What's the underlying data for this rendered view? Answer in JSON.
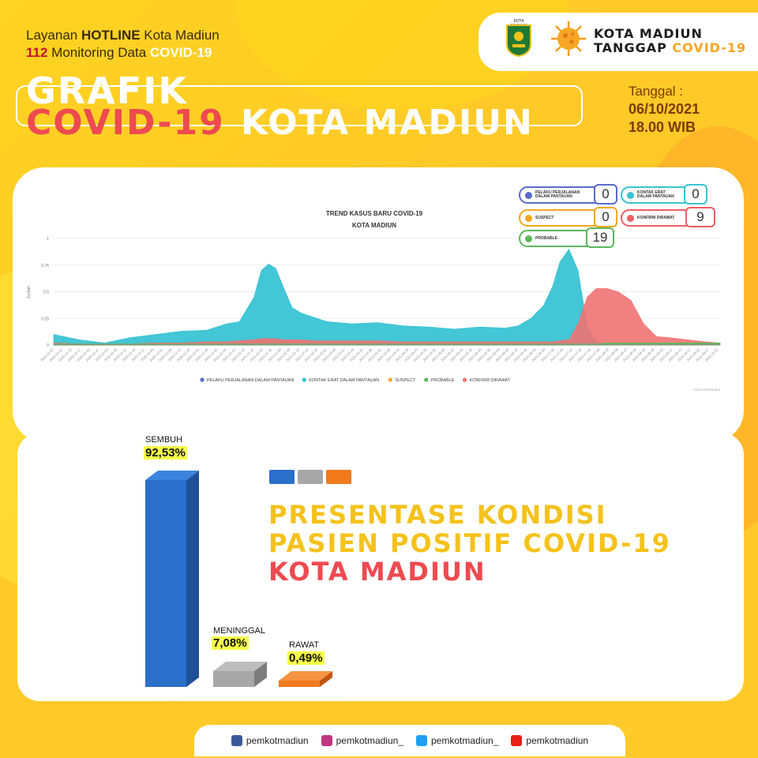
{
  "header": {
    "hotline_pre": "Layanan ",
    "hotline_bold": "HOTLINE",
    "hotline_post": " Kota Madiun",
    "monitoring_num": "112",
    "monitoring_text": " Monitoring Data ",
    "monitoring_tag": "COVID-19",
    "title_line1": "GRAFIK",
    "title_covid": "COVID-19",
    "title_kota": "KOTA MADIUN",
    "date_label": "Tanggal :",
    "date_value": "06/10/2021",
    "date_time": "18.00 WIB"
  },
  "logo": {
    "emblem_caption": "KOTA MADIUN",
    "brand_line1": "KOTA MADIUN",
    "brand_line2_pre": "TANGGAP ",
    "brand_line2_tag": "COVID-19"
  },
  "counters": [
    {
      "label": "PELAKU PERJALANAN\nDALAM PANTAUAN",
      "value": "0",
      "color": "#5a6bc9"
    },
    {
      "label": "KONTAK ERAT\nDALAM PANTAUAN",
      "value": "0",
      "color": "#39c3d4"
    },
    {
      "label": "SUSPECT",
      "value": "0",
      "color": "#f2a81d"
    },
    {
      "label": "KONFIRM DIRAWAT",
      "value": "9",
      "color": "#ec5f64"
    },
    {
      "label": "PROBABLE",
      "value": "19",
      "color": "#5db85c"
    }
  ],
  "chart_data": [
    {
      "type": "area",
      "title": "TREND KASUS BARU COVID-19",
      "subtitle": "KOTA MADIUN",
      "ylabel": "Jumlah",
      "ylim": [
        0,
        1
      ],
      "yticks": [
        "0",
        "0.25",
        "0.5",
        "0.75",
        "1"
      ],
      "grid": true,
      "legend_position": "bottom",
      "credit": "Chart Dashboard",
      "x_start": "2020-10-02",
      "x_end": "2021-10-03",
      "x_tick_labels": [
        "2020-10-02",
        "2020-10-07",
        "2020-10-12",
        "2020-10-17",
        "2020-10-22",
        "2020-10-27",
        "2020-11-01",
        "2020-11-06",
        "2020-11-11",
        "2020-11-16",
        "2020-11-21",
        "2020-11-26",
        "2020-12-01",
        "2020-12-06",
        "2020-12-11",
        "2020-12-16",
        "2020-12-21",
        "2020-12-26",
        "2020-12-31",
        "2021-01-05",
        "2021-01-10",
        "2021-01-15",
        "2021-01-20",
        "2021-01-25",
        "2021-01-30",
        "2021-02-04",
        "2021-02-09",
        "2021-02-14",
        "2021-02-19",
        "2021-02-24",
        "2021-03-01",
        "2021-03-06",
        "2021-03-11",
        "2021-03-16",
        "2021-03-21",
        "2021-03-26",
        "2021-03-31",
        "2021-04-05",
        "2021-04-10",
        "2021-04-15",
        "2021-04-20",
        "2021-04-25",
        "2021-04-30",
        "2021-05-05",
        "2021-05-10",
        "2021-05-15",
        "2021-05-20",
        "2021-05-25",
        "2021-05-30",
        "2021-06-04",
        "2021-06-09",
        "2021-06-14",
        "2021-06-19",
        "2021-06-24",
        "2021-06-29",
        "2021-07-04",
        "2021-07-09",
        "2021-07-14",
        "2021-07-19",
        "2021-07-24",
        "2021-07-29",
        "2021-08-03",
        "2021-08-08",
        "2021-08-13",
        "2021-08-18",
        "2021-08-23",
        "2021-08-28",
        "2021-09-02",
        "2021-09-07",
        "2021-09-12",
        "2021-09-17",
        "2021-09-22",
        "2021-09-27",
        "2021-10-02"
      ],
      "x": [
        "2020-10-02",
        "2020-10-16",
        "2020-10-30",
        "2020-11-13",
        "2020-11-27",
        "2020-12-11",
        "2020-12-25",
        "2021-01-05",
        "2021-01-12",
        "2021-01-20",
        "2021-01-24",
        "2021-01-28",
        "2021-02-01",
        "2021-02-05",
        "2021-02-10",
        "2021-02-15",
        "2021-02-22",
        "2021-03-01",
        "2021-03-15",
        "2021-03-29",
        "2021-04-12",
        "2021-04-26",
        "2021-05-10",
        "2021-05-24",
        "2021-06-07",
        "2021-06-14",
        "2021-06-21",
        "2021-06-28",
        "2021-07-03",
        "2021-07-07",
        "2021-07-12",
        "2021-07-17",
        "2021-07-22",
        "2021-07-27",
        "2021-08-02",
        "2021-08-08",
        "2021-08-15",
        "2021-08-22",
        "2021-08-29",
        "2021-09-05",
        "2021-09-15",
        "2021-09-25",
        "2021-10-03"
      ],
      "series": [
        {
          "name": "PELAKU PERJALANAN DALAM PANTAUAN",
          "color": "#5a6bc9",
          "values": [
            0,
            0,
            0,
            0,
            0,
            0,
            0,
            0,
            0,
            0,
            0,
            0,
            0,
            0,
            0,
            0,
            0,
            0,
            0,
            0,
            0,
            0,
            0,
            0,
            0,
            0,
            0,
            0,
            0,
            0,
            0,
            0,
            0,
            0,
            0,
            0,
            0,
            0,
            0,
            0,
            0,
            0,
            0
          ]
        },
        {
          "name": "KONTAK ERAT DALAM PANTAUAN",
          "color": "#39c3d4",
          "values": [
            0.1,
            0.05,
            0.02,
            0.07,
            0.1,
            0.13,
            0.14,
            0.2,
            0.22,
            0.45,
            0.7,
            0.76,
            0.72,
            0.55,
            0.35,
            0.3,
            0.26,
            0.22,
            0.2,
            0.21,
            0.18,
            0.17,
            0.15,
            0.17,
            0.16,
            0.18,
            0.25,
            0.37,
            0.55,
            0.78,
            0.9,
            0.7,
            0.18,
            0.03,
            0.0,
            0.0,
            0.0,
            0.0,
            0.0,
            0.02,
            0.01,
            0.01,
            0.0
          ]
        },
        {
          "name": "SUSPECT",
          "color": "#f2a81d",
          "values": [
            0,
            0,
            0,
            0,
            0,
            0,
            0,
            0,
            0,
            0,
            0,
            0,
            0,
            0,
            0,
            0,
            0,
            0,
            0,
            0,
            0,
            0,
            0,
            0,
            0,
            0,
            0,
            0,
            0,
            0,
            0,
            0,
            0,
            0,
            0,
            0,
            0,
            0,
            0,
            0,
            0,
            0,
            0
          ]
        },
        {
          "name": "PROBABLE",
          "color": "#5db85c",
          "values": [
            0.01,
            0.01,
            0.01,
            0.01,
            0.01,
            0.01,
            0.01,
            0.01,
            0.01,
            0.01,
            0.01,
            0.01,
            0.01,
            0.01,
            0.01,
            0.01,
            0.01,
            0.01,
            0.01,
            0.01,
            0.01,
            0.01,
            0.01,
            0.01,
            0.01,
            0.01,
            0.01,
            0.01,
            0.01,
            0.01,
            0.01,
            0.01,
            0.01,
            0.01,
            0.02,
            0.02,
            0.02,
            0.02,
            0.02,
            0.02,
            0.02,
            0.02,
            0.02
          ]
        },
        {
          "name": "KONFIRM DIRAWAT",
          "color": "#ef7272",
          "values": [
            0.02,
            0.01,
            0.01,
            0.01,
            0.02,
            0.02,
            0.03,
            0.03,
            0.04,
            0.05,
            0.06,
            0.06,
            0.06,
            0.05,
            0.05,
            0.05,
            0.04,
            0.04,
            0.04,
            0.04,
            0.03,
            0.03,
            0.03,
            0.03,
            0.03,
            0.03,
            0.03,
            0.03,
            0.03,
            0.04,
            0.05,
            0.2,
            0.45,
            0.53,
            0.53,
            0.5,
            0.42,
            0.2,
            0.08,
            0.07,
            0.05,
            0.03,
            0.02
          ]
        }
      ]
    },
    {
      "type": "bar",
      "title": "PRESENTASE KONDISI PASIEN POSITIF COVID-19 KOTA MADIUN",
      "categories": [
        "SEMBUH",
        "MENINGGAL",
        "RAWAT"
      ],
      "values": [
        92.53,
        7.08,
        0.49
      ],
      "labels": [
        "92,53%",
        "7,08%",
        "0,49%"
      ],
      "colors": [
        "#2a6fc9",
        "#a7a7a7",
        "#f07a1c"
      ]
    }
  ],
  "pct_title": {
    "line1": "PRESENTASE KONDISI",
    "line2": "PASIEN POSITIF COVID-19",
    "line3": "KOTA MADIUN"
  },
  "social": [
    {
      "icon": "facebook-icon",
      "handle": "pemkotmadiun",
      "color": "#3b5998"
    },
    {
      "icon": "instagram-icon",
      "handle": "pemkotmadiun_",
      "color": "#c13584"
    },
    {
      "icon": "twitter-icon",
      "handle": "pemkotmadiun_",
      "color": "#1da1f2"
    },
    {
      "icon": "youtube-icon",
      "handle": "pemkotmadiun",
      "color": "#e62117"
    }
  ]
}
